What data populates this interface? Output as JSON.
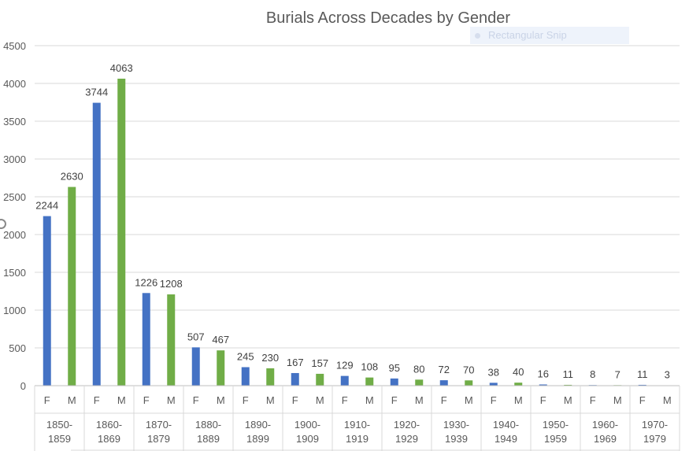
{
  "chart_data": {
    "type": "bar",
    "title": "Burials Across Decades by Gender",
    "groups": [
      "1850-\n1859",
      "1860-\n1869",
      "1870-\n1879",
      "1880-\n1889",
      "1890-\n1899",
      "1900-\n1909",
      "1910-\n1919",
      "1920-\n1929",
      "1930-\n1939",
      "1940-\n1949",
      "1950-\n1959",
      "1960-\n1969",
      "1970-\n1979"
    ],
    "subcategories": [
      "F",
      "M"
    ],
    "series": [
      {
        "key": "F",
        "color": "#4472c4",
        "values": [
          2244,
          3744,
          1226,
          507,
          245,
          167,
          129,
          95,
          72,
          38,
          16,
          8,
          11
        ]
      },
      {
        "key": "M",
        "color": "#70ad47",
        "values": [
          2630,
          4063,
          1208,
          467,
          230,
          157,
          108,
          80,
          70,
          40,
          11,
          7,
          3
        ]
      }
    ],
    "ylim": [
      0,
      4500
    ],
    "yticks": [
      0,
      500,
      1000,
      1500,
      2000,
      2500,
      3000,
      3500,
      4000,
      4500
    ],
    "grid": true,
    "legend": "none",
    "data_labels": true
  },
  "overlay": {
    "snip_label": "Rectangular Snip"
  }
}
